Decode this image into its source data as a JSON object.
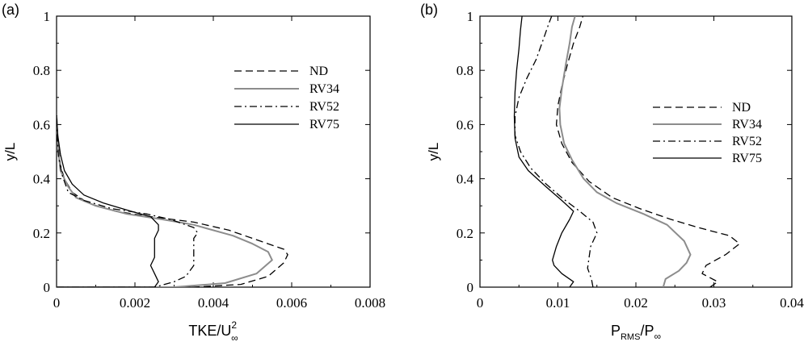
{
  "chart_data": [
    {
      "panel_label": "(a)",
      "type": "line",
      "xlabel": "TKE/U",
      "xlabel_sup": "2",
      "xlabel_sub": "∞",
      "ylabel": "y/L",
      "xlim": [
        0,
        0.008
      ],
      "ylim": [
        0,
        1
      ],
      "xticks": [
        "0",
        "0.002",
        "0.004",
        "0.006",
        "0.008"
      ],
      "yticks": [
        "0",
        "0.2",
        "0.4",
        "0.6",
        "0.8",
        "1"
      ],
      "grid": false,
      "legend_position": "upper-right",
      "series": [
        {
          "name": "ND",
          "style": "dashed",
          "color": "#000000",
          "points": [
            [
              0.0,
              0.0
            ],
            [
              0.0035,
              0.0
            ],
            [
              0.0047,
              0.01
            ],
            [
              0.0054,
              0.04
            ],
            [
              0.0058,
              0.09
            ],
            [
              0.0059,
              0.12
            ],
            [
              0.0058,
              0.14
            ],
            [
              0.0052,
              0.17
            ],
            [
              0.0044,
              0.21
            ],
            [
              0.0035,
              0.24
            ],
            [
              0.0024,
              0.26
            ],
            [
              0.0015,
              0.28
            ],
            [
              0.0008,
              0.31
            ],
            [
              0.0004,
              0.35
            ],
            [
              0.0002,
              0.4
            ],
            [
              0.0001,
              0.45
            ],
            [
              5e-05,
              0.52
            ],
            [
              2e-05,
              0.58
            ],
            [
              0.0,
              0.65
            ]
          ]
        },
        {
          "name": "RV34",
          "style": "solid",
          "color": "#8c8c8c",
          "points": [
            [
              0.0,
              0.0
            ],
            [
              0.003,
              0.0
            ],
            [
              0.0043,
              0.015
            ],
            [
              0.0051,
              0.05
            ],
            [
              0.0055,
              0.1
            ],
            [
              0.0054,
              0.13
            ],
            [
              0.005,
              0.16
            ],
            [
              0.0045,
              0.19
            ],
            [
              0.0035,
              0.23
            ],
            [
              0.0027,
              0.25
            ],
            [
              0.0018,
              0.27
            ],
            [
              0.001,
              0.3
            ],
            [
              0.0005,
              0.33
            ],
            [
              0.0003,
              0.37
            ],
            [
              0.0001,
              0.43
            ],
            [
              5e-05,
              0.5
            ],
            [
              2e-05,
              0.57
            ],
            [
              0.0,
              0.63
            ]
          ]
        },
        {
          "name": "RV52",
          "style": "dashdot",
          "color": "#000000",
          "points": [
            [
              0.0,
              0.0
            ],
            [
              0.0025,
              0.0
            ],
            [
              0.003,
              0.02
            ],
            [
              0.0033,
              0.04
            ],
            [
              0.0035,
              0.08
            ],
            [
              0.0035,
              0.13
            ],
            [
              0.0035,
              0.18
            ],
            [
              0.0036,
              0.2
            ],
            [
              0.0035,
              0.22
            ],
            [
              0.0029,
              0.25
            ],
            [
              0.0023,
              0.27
            ],
            [
              0.0014,
              0.29
            ],
            [
              0.0007,
              0.32
            ],
            [
              0.0003,
              0.35
            ],
            [
              0.00015,
              0.41
            ],
            [
              5e-05,
              0.48
            ],
            [
              2e-05,
              0.55
            ],
            [
              0.0,
              0.63
            ]
          ]
        },
        {
          "name": "RV75",
          "style": "solid",
          "color": "#000000",
          "points": [
            [
              0.0,
              0.0
            ],
            [
              0.0025,
              0.0
            ],
            [
              0.0026,
              0.02
            ],
            [
              0.0025,
              0.05
            ],
            [
              0.0024,
              0.08
            ],
            [
              0.0025,
              0.11
            ],
            [
              0.0025,
              0.15
            ],
            [
              0.0025,
              0.18
            ],
            [
              0.0026,
              0.21
            ],
            [
              0.0026,
              0.23
            ],
            [
              0.0024,
              0.26
            ],
            [
              0.0019,
              0.28
            ],
            [
              0.0012,
              0.31
            ],
            [
              0.0007,
              0.34
            ],
            [
              0.0004,
              0.38
            ],
            [
              0.0002,
              0.43
            ],
            [
              0.0001,
              0.49
            ],
            [
              3e-05,
              0.56
            ],
            [
              0.0,
              0.63
            ]
          ]
        }
      ]
    },
    {
      "panel_label": "(b)",
      "type": "line",
      "xlabel": "P",
      "xlabel_sub": "RMS",
      "xlabel_tail": "/P",
      "xlabel_tail_sub": "∞",
      "ylabel": "y/L",
      "xlim": [
        0,
        0.04
      ],
      "ylim": [
        0,
        1
      ],
      "xticks": [
        "0",
        "0.01",
        "0.02",
        "0.03",
        "0.04"
      ],
      "yticks": [
        "0",
        "0.2",
        "0.4",
        "0.6",
        "0.8",
        "1"
      ],
      "grid": false,
      "legend_position": "right",
      "series": [
        {
          "name": "ND",
          "style": "dashed",
          "color": "#000000",
          "points": [
            [
              0.0295,
              0.0
            ],
            [
              0.0305,
              0.02
            ],
            [
              0.0285,
              0.05
            ],
            [
              0.029,
              0.08
            ],
            [
              0.0315,
              0.12
            ],
            [
              0.0333,
              0.16
            ],
            [
              0.032,
              0.19
            ],
            [
              0.028,
              0.22
            ],
            [
              0.0245,
              0.25
            ],
            [
              0.0205,
              0.29
            ],
            [
              0.017,
              0.33
            ],
            [
              0.014,
              0.39
            ],
            [
              0.0118,
              0.46
            ],
            [
              0.0105,
              0.53
            ],
            [
              0.0098,
              0.6
            ],
            [
              0.01,
              0.67
            ],
            [
              0.0105,
              0.74
            ],
            [
              0.0112,
              0.82
            ],
            [
              0.012,
              0.9
            ],
            [
              0.0128,
              0.96
            ],
            [
              0.0132,
              1.0
            ]
          ]
        },
        {
          "name": "RV34",
          "style": "solid",
          "color": "#8c8c8c",
          "points": [
            [
              0.0235,
              0.0
            ],
            [
              0.0238,
              0.03
            ],
            [
              0.0255,
              0.06
            ],
            [
              0.0265,
              0.09
            ],
            [
              0.027,
              0.12
            ],
            [
              0.0262,
              0.17
            ],
            [
              0.024,
              0.23
            ],
            [
              0.021,
              0.27
            ],
            [
              0.0175,
              0.31
            ],
            [
              0.015,
              0.35
            ],
            [
              0.0133,
              0.4
            ],
            [
              0.0118,
              0.47
            ],
            [
              0.0108,
              0.53
            ],
            [
              0.0103,
              0.6
            ],
            [
              0.0102,
              0.66
            ],
            [
              0.0105,
              0.73
            ],
            [
              0.011,
              0.82
            ],
            [
              0.0115,
              0.9
            ],
            [
              0.0118,
              0.96
            ],
            [
              0.0122,
              1.0
            ]
          ]
        },
        {
          "name": "RV52",
          "style": "dashdot",
          "color": "#000000",
          "points": [
            [
              0.0145,
              0.0
            ],
            [
              0.0143,
              0.03
            ],
            [
              0.0138,
              0.07
            ],
            [
              0.014,
              0.11
            ],
            [
              0.0142,
              0.15
            ],
            [
              0.015,
              0.2
            ],
            [
              0.0145,
              0.24
            ],
            [
              0.0128,
              0.28
            ],
            [
              0.0105,
              0.33
            ],
            [
              0.0085,
              0.38
            ],
            [
              0.0065,
              0.44
            ],
            [
              0.0052,
              0.5
            ],
            [
              0.0045,
              0.56
            ],
            [
              0.0045,
              0.63
            ],
            [
              0.005,
              0.7
            ],
            [
              0.006,
              0.77
            ],
            [
              0.0072,
              0.84
            ],
            [
              0.0082,
              0.92
            ],
            [
              0.0088,
              0.97
            ],
            [
              0.0092,
              1.0
            ]
          ]
        },
        {
          "name": "RV75",
          "style": "solid",
          "color": "#000000",
          "points": [
            [
              0.0115,
              0.0
            ],
            [
              0.012,
              0.02
            ],
            [
              0.0105,
              0.05
            ],
            [
              0.0095,
              0.08
            ],
            [
              0.0093,
              0.1
            ],
            [
              0.0098,
              0.15
            ],
            [
              0.0105,
              0.2
            ],
            [
              0.0115,
              0.25
            ],
            [
              0.012,
              0.28
            ],
            [
              0.0105,
              0.32
            ],
            [
              0.0085,
              0.37
            ],
            [
              0.0062,
              0.43
            ],
            [
              0.005,
              0.48
            ],
            [
              0.0045,
              0.55
            ],
            [
              0.0044,
              0.63
            ],
            [
              0.0045,
              0.72
            ],
            [
              0.0047,
              0.8
            ],
            [
              0.005,
              0.88
            ],
            [
              0.0052,
              0.95
            ],
            [
              0.0054,
              1.0
            ]
          ]
        }
      ]
    }
  ]
}
